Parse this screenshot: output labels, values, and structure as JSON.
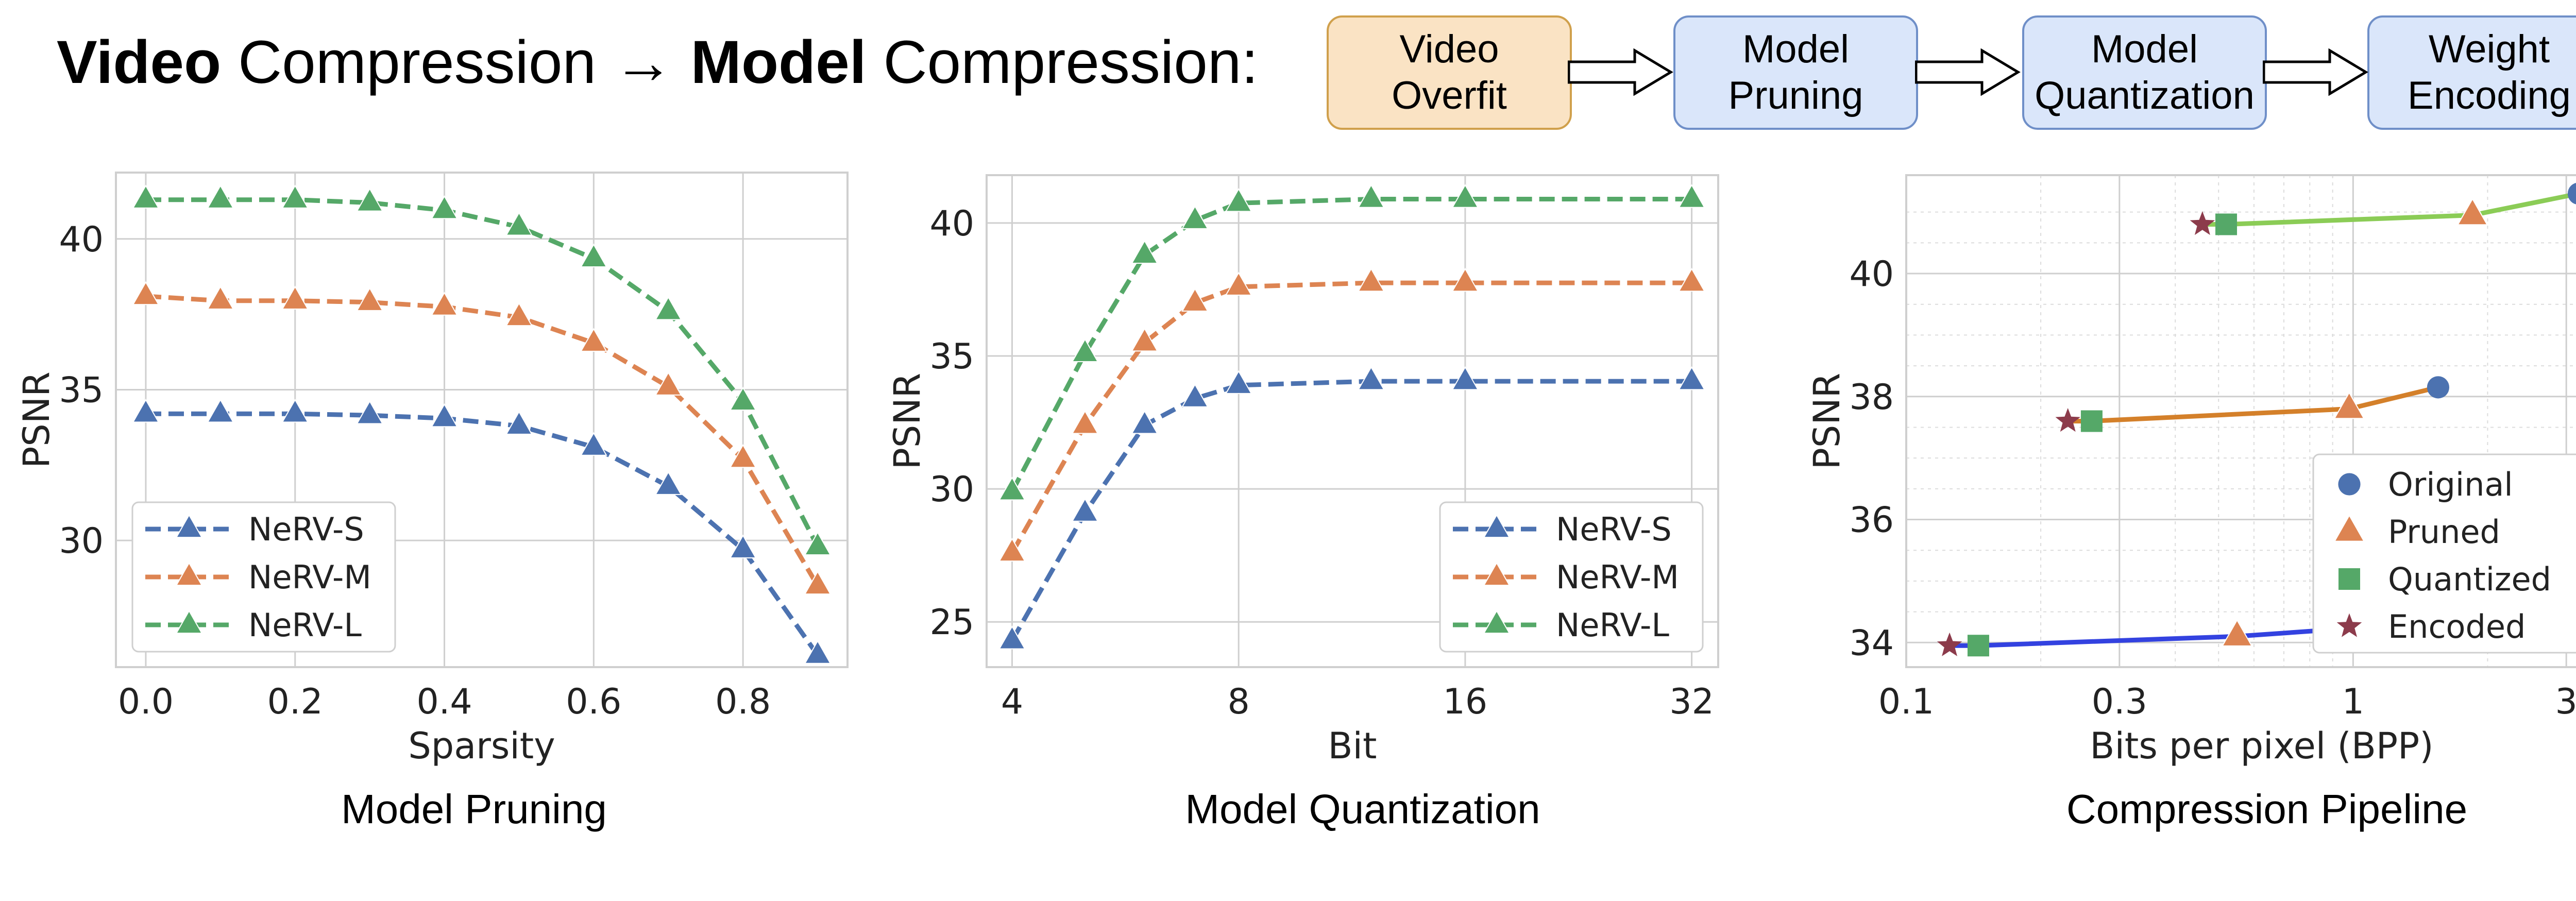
{
  "header": {
    "title_bold_1": "Video",
    "title_text_1": " Compression → ",
    "title_bold_2": "Model",
    "title_text_2": " Compression:"
  },
  "pipeline": {
    "steps": [
      {
        "line1": "Video",
        "line2": "Overfit",
        "fill": "#fae3c4",
        "border": "#d0a04c"
      },
      {
        "line1": "Model",
        "line2": "Pruning",
        "fill": "#dae6fa",
        "border": "#6f8fc8"
      },
      {
        "line1": "Model",
        "line2": "Quantization",
        "fill": "#dae6fa",
        "border": "#6f8fc8"
      },
      {
        "line1": "Weight",
        "line2": "Encoding",
        "fill": "#dae6fa",
        "border": "#6f8fc8"
      }
    ]
  },
  "colors": {
    "blue": "#4c72b0",
    "orange": "#dd8452",
    "green": "#55a868",
    "purple": "#8c3b4b"
  },
  "chart_data": [
    {
      "type": "line",
      "caption": "Model Pruning",
      "xlabel": "Sparsity",
      "ylabel": "PSNR",
      "xlim": [
        -0.04,
        0.94
      ],
      "ylim": [
        25.8,
        42.2
      ],
      "xticks": [
        0.0,
        0.2,
        0.4,
        0.6,
        0.8
      ],
      "xtick_labels": [
        "0.0",
        "0.2",
        "0.4",
        "0.6",
        "0.8"
      ],
      "yticks": [
        30,
        35,
        40
      ],
      "ytick_labels": [
        "30",
        "35",
        "40"
      ],
      "grid": true,
      "legend": "bottom-left",
      "x": [
        0.0,
        0.1,
        0.2,
        0.3,
        0.4,
        0.5,
        0.6,
        0.7,
        0.8,
        0.9
      ],
      "series": [
        {
          "name": "NeRV-S",
          "color": "#4c72b0",
          "values": [
            34.2,
            34.2,
            34.2,
            34.15,
            34.05,
            33.8,
            33.1,
            31.8,
            29.7,
            26.2
          ]
        },
        {
          "name": "NeRV-M",
          "color": "#dd8452",
          "values": [
            38.1,
            37.95,
            37.95,
            37.9,
            37.75,
            37.4,
            36.55,
            35.1,
            32.7,
            28.5
          ]
        },
        {
          "name": "NeRV-L",
          "color": "#55a868",
          "values": [
            41.3,
            41.3,
            41.3,
            41.2,
            40.95,
            40.4,
            39.35,
            37.6,
            34.6,
            29.8
          ]
        }
      ]
    },
    {
      "type": "line",
      "caption": "Model Quantization",
      "xlabel": "Bit",
      "ylabel": "PSNR",
      "xscale": "log2",
      "xlim": [
        3.7,
        34.7
      ],
      "ylim": [
        23.3,
        41.8
      ],
      "xticks": [
        4,
        8,
        16,
        32
      ],
      "xtick_labels": [
        "4",
        "8",
        "16",
        "32"
      ],
      "yticks": [
        25,
        30,
        35,
        40
      ],
      "ytick_labels": [
        "25",
        "30",
        "35",
        "40"
      ],
      "grid": true,
      "legend": "bottom-right",
      "x": [
        4,
        5,
        6,
        7,
        8,
        12,
        16,
        32
      ],
      "series": [
        {
          "name": "NeRV-S",
          "color": "#4c72b0",
          "values": [
            24.3,
            29.1,
            32.4,
            33.4,
            33.9,
            34.05,
            34.05,
            34.05
          ]
        },
        {
          "name": "NeRV-M",
          "color": "#dd8452",
          "values": [
            27.6,
            32.4,
            35.5,
            37.0,
            37.6,
            37.75,
            37.75,
            37.75
          ]
        },
        {
          "name": "NeRV-L",
          "color": "#55a868",
          "values": [
            29.9,
            35.1,
            38.8,
            40.1,
            40.75,
            40.9,
            40.9,
            40.9
          ]
        }
      ]
    },
    {
      "type": "scatter",
      "caption": "Compression Pipeline",
      "xlabel": "Bits per pixel (BPP)",
      "ylabel": "PSNR",
      "xscale": "log",
      "xlim": [
        0.1,
        3.9
      ],
      "ylim": [
        33.6,
        41.6
      ],
      "xticks": [
        0.1,
        0.3,
        1,
        3
      ],
      "xtick_labels": [
        "0.1",
        "0.3",
        "1",
        "3"
      ],
      "yticks": [
        34,
        36,
        38,
        40
      ],
      "ytick_labels": [
        "34",
        "36",
        "38",
        "40"
      ],
      "grid": true,
      "minor_grid": true,
      "legend": "bottom-right",
      "legend_entries": [
        {
          "name": "Original",
          "marker": "circle",
          "color": "#4c72b0"
        },
        {
          "name": "Pruned",
          "marker": "triangle",
          "color": "#dd8452"
        },
        {
          "name": "Quantized",
          "marker": "square",
          "color": "#55a868"
        },
        {
          "name": "Encoded",
          "marker": "star",
          "color": "#8c3b4b"
        }
      ],
      "lines": [
        {
          "color": "#3342e0",
          "points": [
            {
              "bpp": 0.125,
              "psnr": 33.95
            },
            {
              "bpp": 0.145,
              "psnr": 33.95
            },
            {
              "bpp": 0.55,
              "psnr": 34.1
            },
            {
              "bpp": 0.86,
              "psnr": 34.2
            }
          ]
        },
        {
          "color": "#d4802a",
          "points": [
            {
              "bpp": 0.23,
              "psnr": 37.6
            },
            {
              "bpp": 0.26,
              "psnr": 37.6
            },
            {
              "bpp": 0.98,
              "psnr": 37.8
            },
            {
              "bpp": 1.55,
              "psnr": 38.15
            }
          ]
        },
        {
          "color": "#8bcc56",
          "points": [
            {
              "bpp": 0.46,
              "psnr": 40.8
            },
            {
              "bpp": 0.52,
              "psnr": 40.8
            },
            {
              "bpp": 1.85,
              "psnr": 40.95
            },
            {
              "bpp": 3.2,
              "psnr": 41.3
            }
          ]
        }
      ],
      "points": [
        {
          "bpp": 0.86,
          "psnr": 34.2,
          "stage": "Original"
        },
        {
          "bpp": 1.55,
          "psnr": 38.15,
          "stage": "Original"
        },
        {
          "bpp": 3.2,
          "psnr": 41.3,
          "stage": "Original"
        },
        {
          "bpp": 0.55,
          "psnr": 34.1,
          "stage": "Pruned"
        },
        {
          "bpp": 0.98,
          "psnr": 37.8,
          "stage": "Pruned"
        },
        {
          "bpp": 1.85,
          "psnr": 40.95,
          "stage": "Pruned"
        },
        {
          "bpp": 0.145,
          "psnr": 33.95,
          "stage": "Quantized"
        },
        {
          "bpp": 0.26,
          "psnr": 37.6,
          "stage": "Quantized"
        },
        {
          "bpp": 0.52,
          "psnr": 40.8,
          "stage": "Quantized"
        },
        {
          "bpp": 0.125,
          "psnr": 33.95,
          "stage": "Encoded"
        },
        {
          "bpp": 0.23,
          "psnr": 37.6,
          "stage": "Encoded"
        },
        {
          "bpp": 0.46,
          "psnr": 40.8,
          "stage": "Encoded"
        }
      ]
    }
  ]
}
